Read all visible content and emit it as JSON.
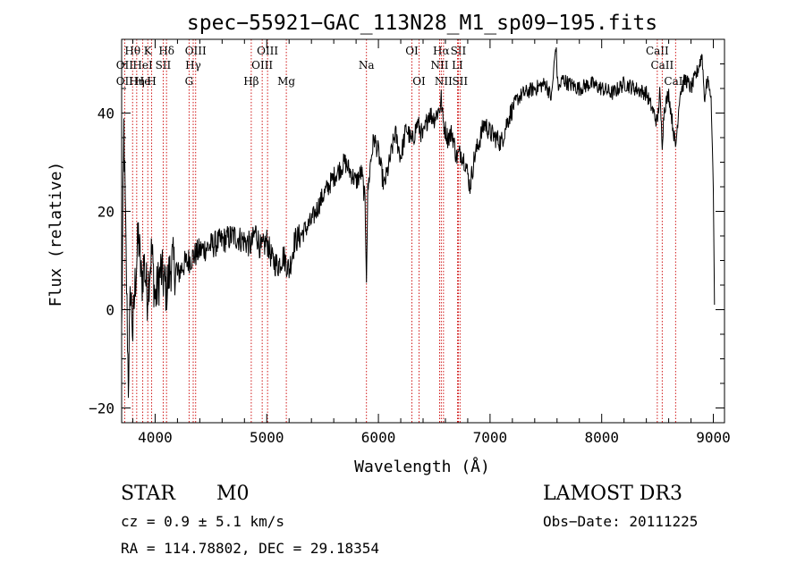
{
  "chart_data": {
    "type": "line",
    "title": "spec−55921−GAC_113N28_M1_sp09−195.fits",
    "xlabel": "Wavelength (Å)",
    "ylabel": "Flux (relative)",
    "xlim": [
      3700,
      9100
    ],
    "ylim": [
      -23,
      55
    ],
    "x_ticks": [
      4000,
      5000,
      6000,
      7000,
      8000,
      9000
    ],
    "x_tick_labels": [
      "4000",
      "5000",
      "6000",
      "7000",
      "8000",
      "9000"
    ],
    "y_ticks": [
      -20,
      0,
      20,
      40
    ],
    "y_tick_labels": [
      "−20",
      "0",
      "20",
      "40"
    ],
    "grid": false,
    "line_color": "#000000",
    "marker_color": "#cc0000",
    "series": [
      {
        "name": "flux",
        "x": [
          3700,
          3720,
          3740,
          3760,
          3780,
          3800,
          3820,
          3850,
          3880,
          3900,
          3930,
          3950,
          3970,
          4000,
          4050,
          4100,
          4150,
          4200,
          4250,
          4300,
          4350,
          4400,
          4500,
          4600,
          4700,
          4800,
          4860,
          4900,
          4950,
          5000,
          5050,
          5100,
          5150,
          5200,
          5250,
          5300,
          5400,
          5500,
          5600,
          5700,
          5800,
          5850,
          5880,
          5893,
          5905,
          5930,
          5960,
          6000,
          6050,
          6100,
          6150,
          6200,
          6250,
          6300,
          6350,
          6400,
          6450,
          6500,
          6550,
          6563,
          6580,
          6620,
          6660,
          6700,
          6740,
          6780,
          6820,
          6860,
          6900,
          6950,
          7000,
          7050,
          7100,
          7150,
          7200,
          7250,
          7300,
          7400,
          7500,
          7550,
          7590,
          7605,
          7620,
          7650,
          7700,
          7800,
          7900,
          8000,
          8100,
          8200,
          8300,
          8400,
          8450,
          8498,
          8520,
          8542,
          8560,
          8600,
          8662,
          8700,
          8750,
          8800,
          8850,
          8900,
          8920,
          8950,
          8980,
          9000,
          9010
        ],
        "y": [
          -5,
          37,
          10,
          -15,
          5,
          -5,
          5,
          15,
          5,
          10,
          3,
          8,
          12,
          2,
          8,
          4,
          10,
          7,
          9,
          10,
          11,
          12,
          13,
          14,
          15,
          14,
          13,
          16,
          12,
          14,
          10,
          9,
          11,
          8,
          14,
          15,
          18,
          23,
          27,
          30,
          26,
          28,
          22,
          7,
          24,
          30,
          35,
          32,
          25,
          30,
          36,
          31,
          37,
          34,
          38,
          35,
          40,
          39,
          41,
          43,
          38,
          35,
          36,
          31,
          32,
          30,
          25,
          31,
          34,
          38,
          36,
          35,
          34,
          38,
          41,
          43,
          44,
          45,
          46,
          43,
          54,
          46,
          45,
          47,
          46,
          45,
          46,
          45,
          44,
          46,
          45,
          44,
          41,
          38,
          44,
          34,
          41,
          44,
          33,
          44,
          47,
          45,
          48,
          52,
          43,
          47,
          43,
          25,
          1
        ]
      }
    ],
    "line_markers": [
      {
        "name": "Hθ",
        "x": 3798,
        "row": 1
      },
      {
        "name": "OII",
        "x": 3727,
        "row": 2
      },
      {
        "name": "OII",
        "x": 3727,
        "row": 3
      },
      {
        "name": "He",
        "x": 3889,
        "row": 3
      },
      {
        "name": "K",
        "x": 3934,
        "row": 1
      },
      {
        "name": "HeI",
        "x": 3889,
        "row": 2
      },
      {
        "name": "Hη",
        "x": 3835,
        "row": 3
      },
      {
        "name": "SII",
        "x": 4072,
        "row": 2
      },
      {
        "name": "H",
        "x": 3969,
        "row": 3
      },
      {
        "name": "Hδ",
        "x": 4102,
        "row": 1
      },
      {
        "name": "OIII",
        "x": 4363,
        "row": 1
      },
      {
        "name": "Hγ",
        "x": 4341,
        "row": 2
      },
      {
        "name": "G",
        "x": 4304,
        "row": 3
      },
      {
        "name": "OIII",
        "x": 5007,
        "row": 1
      },
      {
        "name": "OIII",
        "x": 4959,
        "row": 2
      },
      {
        "name": "Hβ",
        "x": 4861,
        "row": 3
      },
      {
        "name": "Mg",
        "x": 5175,
        "row": 3
      },
      {
        "name": "Na",
        "x": 5893,
        "row": 2
      },
      {
        "name": "OI",
        "x": 6300,
        "row": 1
      },
      {
        "name": "OI",
        "x": 6364,
        "row": 3
      },
      {
        "name": "Hα",
        "x": 6563,
        "row": 1
      },
      {
        "name": "SII",
        "x": 6716,
        "row": 1
      },
      {
        "name": "NII",
        "x": 6548,
        "row": 2
      },
      {
        "name": "LI",
        "x": 6708,
        "row": 2
      },
      {
        "name": "NII",
        "x": 6583,
        "row": 3
      },
      {
        "name": "SII",
        "x": 6731,
        "row": 3
      },
      {
        "name": "CaII",
        "x": 8498,
        "row": 1
      },
      {
        "name": "CaII",
        "x": 8542,
        "row": 2
      },
      {
        "name": "CaII",
        "x": 8662,
        "row": 3
      }
    ]
  },
  "info": {
    "object_class": "STAR",
    "subclass": "M0",
    "survey": "LAMOST DR3",
    "redshift": "cz = 0.9 ± 5.1 km/s",
    "obs_date": "Obs−Date: 20111225",
    "coords": "RA = 114.78802, DEC =  29.18354"
  }
}
